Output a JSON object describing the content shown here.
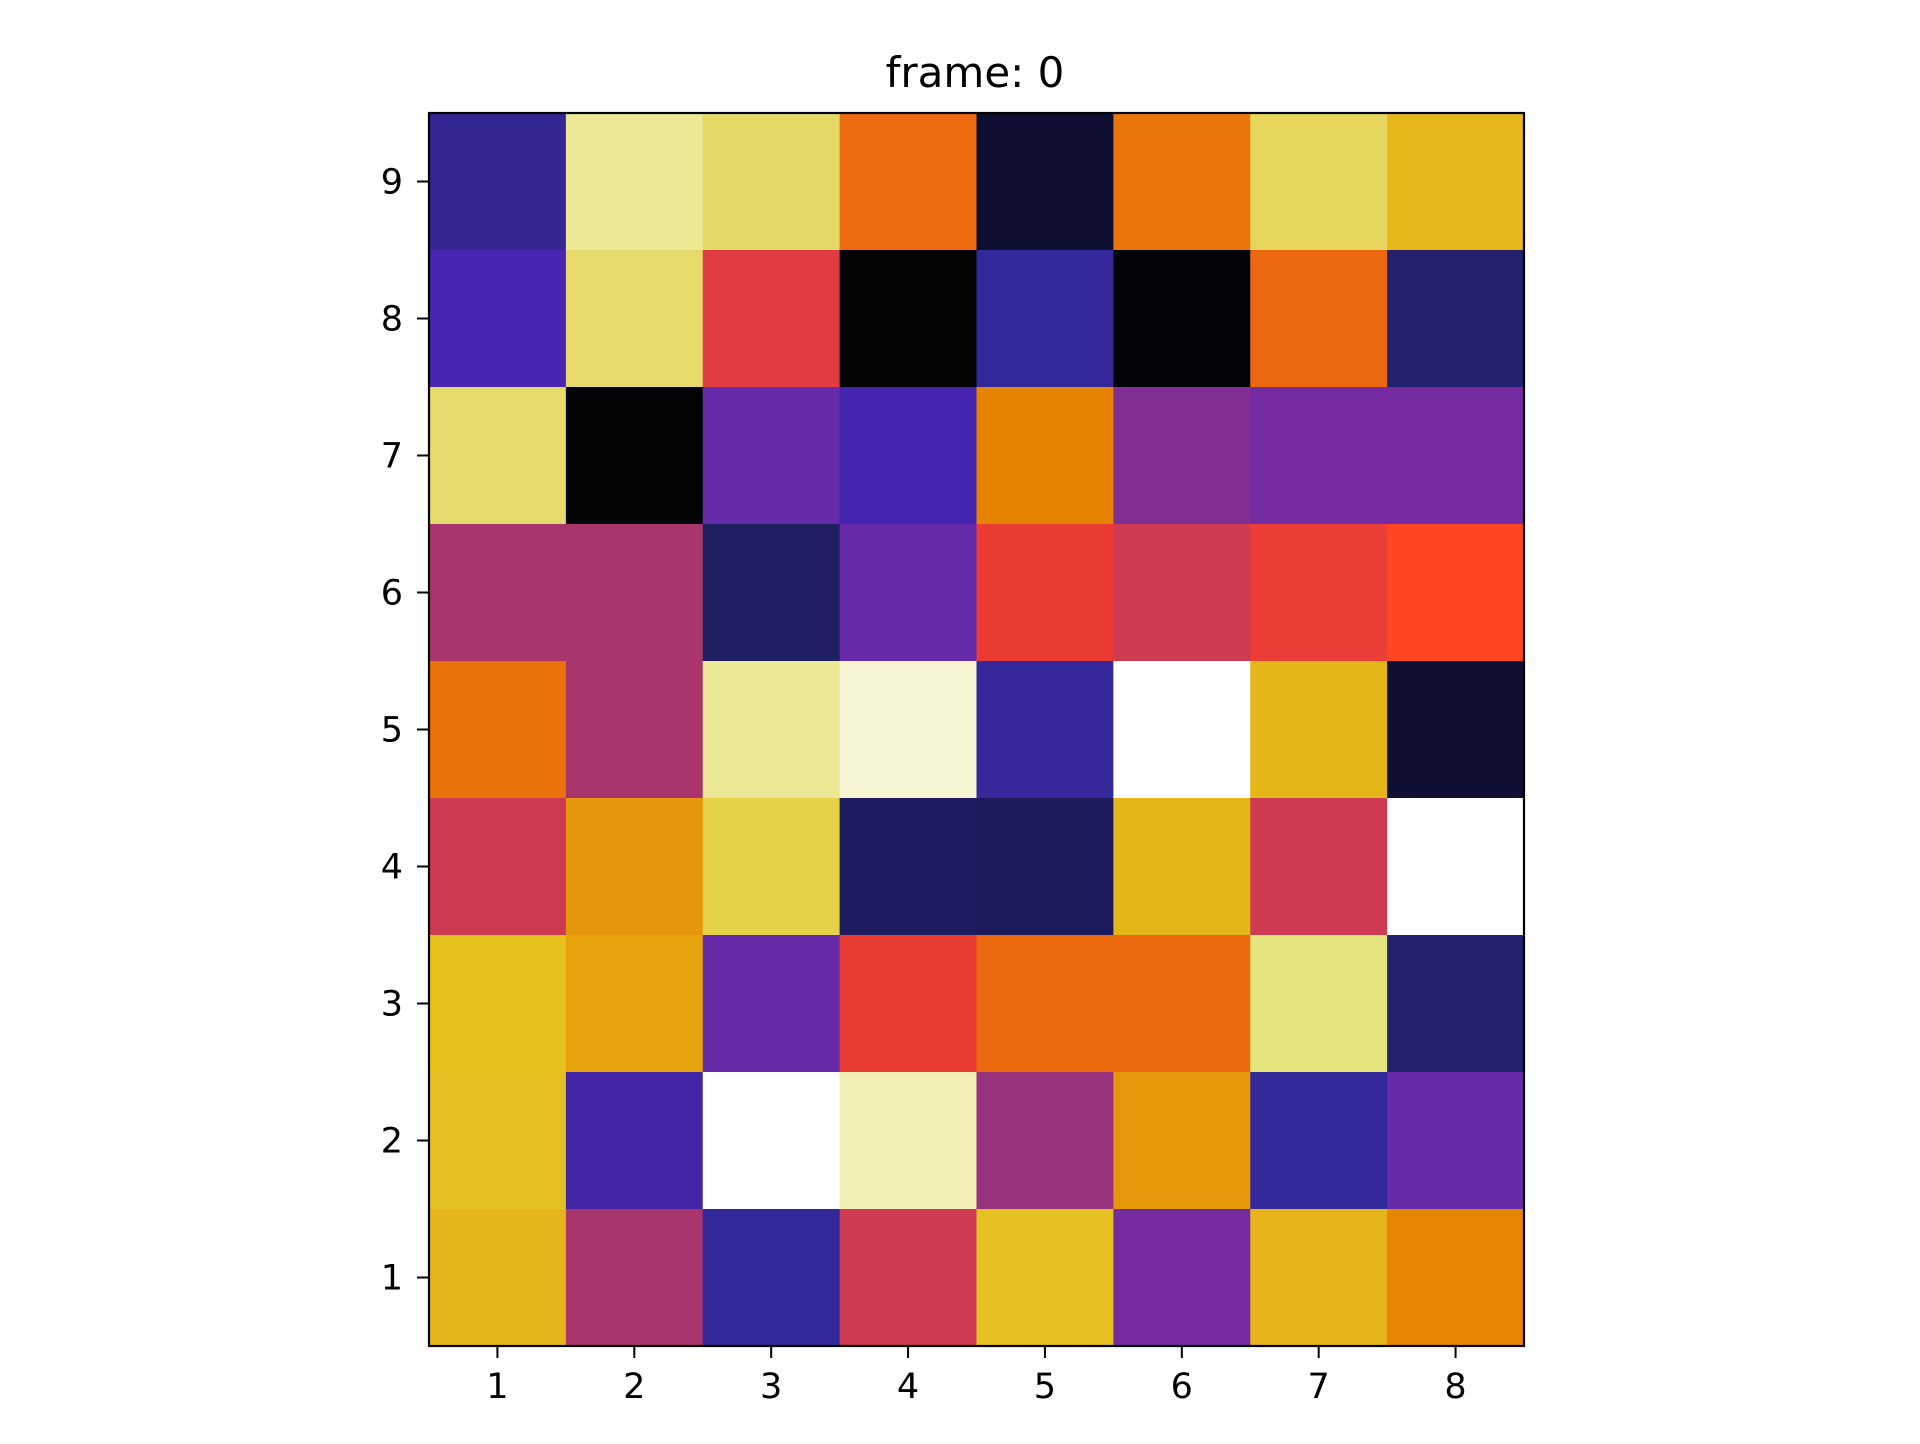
{
  "chart_data": {
    "type": "heatmap",
    "title": "frame: 0",
    "xlabel": "",
    "ylabel": "",
    "x_ticks": [
      "1",
      "2",
      "3",
      "4",
      "5",
      "6",
      "7",
      "8"
    ],
    "y_ticks": [
      "1",
      "2",
      "3",
      "4",
      "5",
      "6",
      "7",
      "8",
      "9"
    ],
    "xlim": [
      0.5,
      8.5
    ],
    "ylim": [
      0.5,
      9.5
    ],
    "grid": false,
    "colormap": "CMRmap",
    "rows": [
      {
        "y": 9,
        "colors": [
          "#332793",
          "#ebe994",
          "#e6da67",
          "#ec6b0e",
          "#0e0f33",
          "#ea7508",
          "#e6d75c",
          "#e6b71a"
        ]
      },
      {
        "y": 8,
        "colors": [
          "#4826b1",
          "#e6db6a",
          "#e23c43",
          "#040407",
          "#33289a",
          "#030407",
          "#ec6810",
          "#23206e"
        ]
      },
      {
        "y": 7,
        "colors": [
          "#e6db6a",
          "#040407",
          "#662ba9",
          "#4525ae",
          "#e68300",
          "#812f92",
          "#752ba0",
          "#752ba0"
        ]
      },
      {
        "y": 6,
        "colors": [
          "#a9356d",
          "#a9356d",
          "#1f1e60",
          "#672aa9",
          "#eb3c33",
          "#cd3a52",
          "#eb3e37",
          "#ff4522"
        ]
      },
      {
        "y": 5,
        "colors": [
          "#e97308",
          "#a9356d",
          "#ebe995",
          "#f6f5d1",
          "#34289b",
          "#ffffff",
          "#e5b617",
          "#0e0f33"
        ]
      },
      {
        "y": 4,
        "colors": [
          "#cd3a52",
          "#e6960a",
          "#e6d247",
          "#1f1d62",
          "#1c1a5b",
          "#e5b616",
          "#cd3a52",
          "#ffffff"
        ]
      },
      {
        "y": 3,
        "colors": [
          "#e6c11c",
          "#e6a30e",
          "#672aa9",
          "#eb3c33",
          "#ec680d",
          "#ec680d",
          "#e5e57d",
          "#23206e"
        ]
      },
      {
        "y": 2,
        "colors": [
          "#e5c222",
          "#4226a6",
          "#ffffff",
          "#f1efb3",
          "#99337d",
          "#e6970a",
          "#33289a",
          "#672aa9"
        ]
      },
      {
        "y": 1,
        "colors": [
          "#e6b51a",
          "#a9356d",
          "#33289a",
          "#cd3a52",
          "#e5c222",
          "#752ba0",
          "#e6b41a",
          "#e68600"
        ]
      }
    ]
  }
}
